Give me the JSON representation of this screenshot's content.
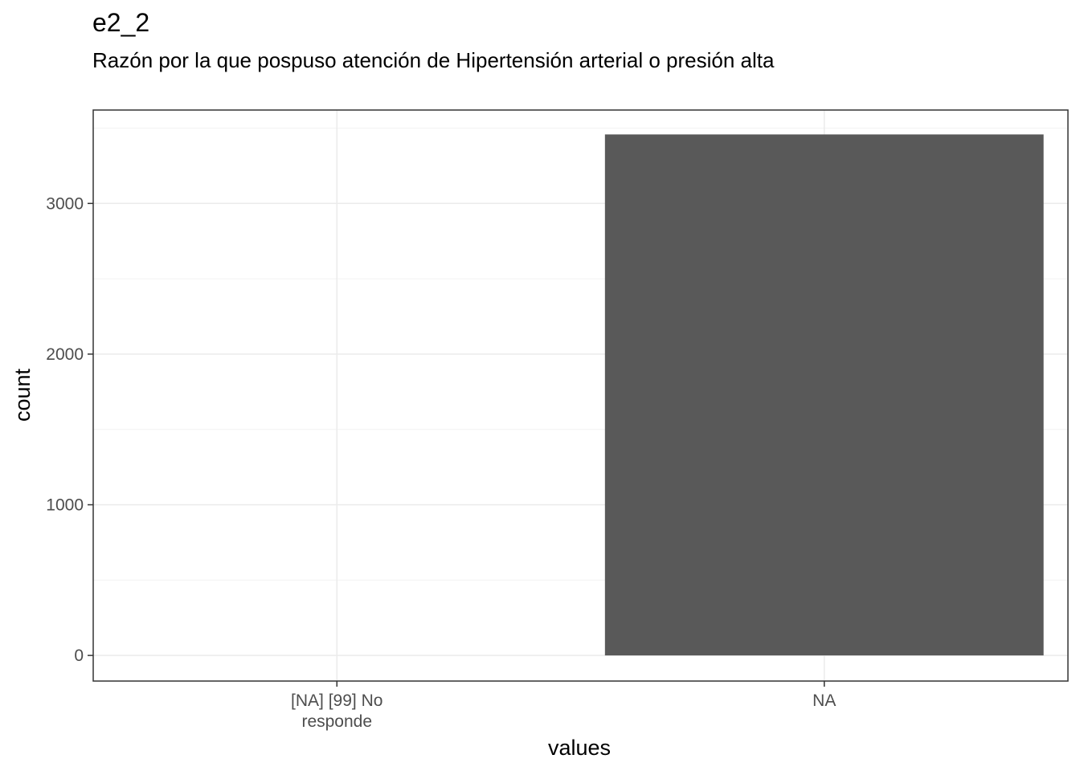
{
  "chart_data": {
    "type": "bar",
    "title": "e2_2",
    "subtitle": "Razón por la que pospuso atención de Hipertensión arterial o presión alta",
    "xlabel": "values",
    "ylabel": "count",
    "categories": [
      [
        "[NA] [99] No",
        "responde"
      ],
      [
        "NA"
      ]
    ],
    "values": [
      0,
      3458
    ],
    "ylim": [
      -170,
      3620
    ],
    "yticks": [
      0,
      1000,
      2000,
      3000
    ],
    "grid": true,
    "bar_color": "#595959"
  }
}
